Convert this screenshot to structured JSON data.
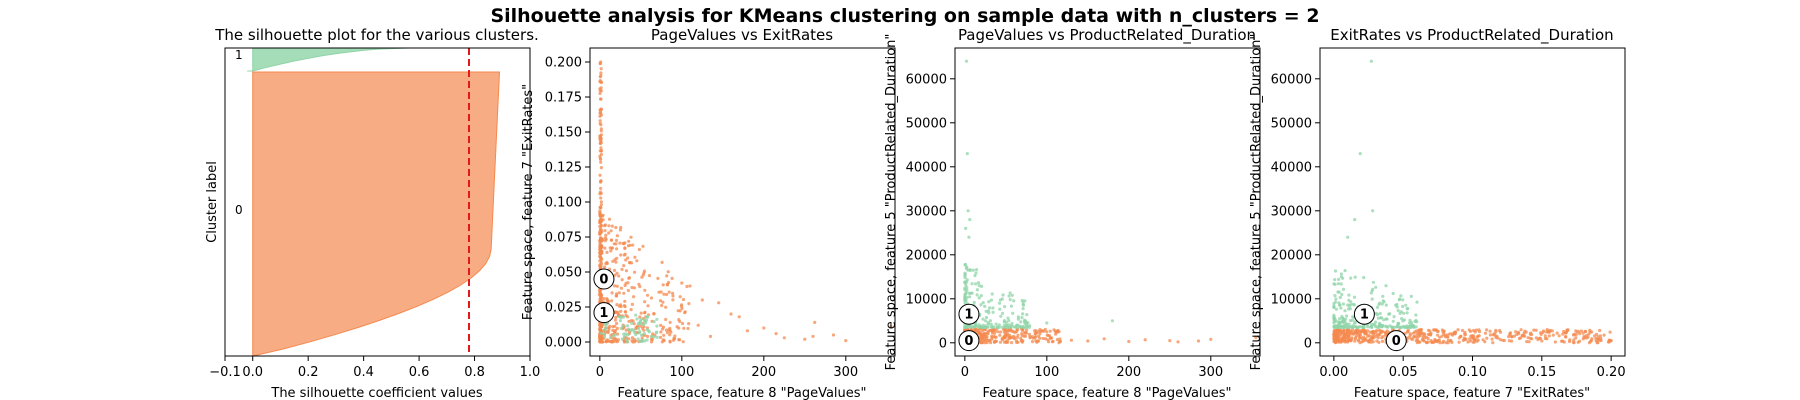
{
  "figure": {
    "suptitle": "Silhouette analysis for KMeans clustering on sample data with n_clusters = 2"
  },
  "colors": {
    "cluster_0": "#f4894f",
    "cluster_1": "#8fd4a8",
    "threshold": "#e31a1c",
    "center_fill": "#ffffff",
    "axis": "#000000"
  },
  "chart_data": [
    {
      "type": "area",
      "title": "The silhouette plot for the various clusters.",
      "xlabel": "The silhouette coefficient values",
      "ylabel": "Cluster label",
      "xlim": [
        -0.1,
        1.0
      ],
      "xticks": [
        -0.1,
        0.0,
        0.2,
        0.4,
        0.6,
        0.8,
        1.0
      ],
      "xtick_labels": [
        "−0.1",
        "0.0",
        "0.2",
        "0.4",
        "0.6",
        "0.8",
        "1.0"
      ],
      "average_silhouette": 0.78,
      "clusters": [
        {
          "label": "0",
          "max_coefficient": 0.89,
          "min_coefficient": 0.0
        },
        {
          "label": "1",
          "max_coefficient": 0.56,
          "min_coefficient": 0.0
        }
      ],
      "grid": false
    },
    {
      "type": "scatter",
      "title": "PageValues vs ExitRates",
      "xlabel": "Feature space, feature 8 \"PageValues\"",
      "ylabel": "Feature space, feature 7 \"ExitRates\"",
      "xlim": [
        -12,
        360
      ],
      "ylim": [
        -0.01,
        0.21
      ],
      "xticks": [
        0,
        100,
        200,
        300
      ],
      "yticks": [
        0.0,
        0.025,
        0.05,
        0.075,
        0.1,
        0.125,
        0.15,
        0.175,
        0.2
      ],
      "ytick_labels": [
        "0.000",
        "0.025",
        "0.050",
        "0.075",
        "0.100",
        "0.125",
        "0.150",
        "0.175",
        "0.200"
      ],
      "centers": [
        {
          "label": "0",
          "x": 5,
          "y": 0.045
        },
        {
          "label": "1",
          "x": 5,
          "y": 0.021
        }
      ],
      "grid": false
    },
    {
      "type": "scatter",
      "title": "PageValues vs ProductRelated_Duration",
      "xlabel": "Feature space, feature 8 \"PageValues\"",
      "ylabel": "Feature space, feature 5 \"ProductRelated_Duration\"",
      "xlim": [
        -12,
        360
      ],
      "ylim": [
        -3000,
        67000
      ],
      "xticks": [
        0,
        100,
        200,
        300
      ],
      "yticks": [
        0,
        10000,
        20000,
        30000,
        40000,
        50000,
        60000
      ],
      "centers": [
        {
          "label": "1",
          "x": 5,
          "y": 6500
        },
        {
          "label": "0",
          "x": 5,
          "y": 500
        }
      ],
      "grid": false
    },
    {
      "type": "scatter",
      "title": "ExitRates vs ProductRelated_Duration",
      "xlabel": "Feature space, feature 7 \"ExitRates\"",
      "ylabel": "Feature space, feature 5 \"ProductRelated_Duration\"",
      "xlim": [
        -0.01,
        0.21
      ],
      "ylim": [
        -3000,
        67000
      ],
      "xticks": [
        0.0,
        0.05,
        0.1,
        0.15,
        0.2
      ],
      "xtick_labels": [
        "0.00",
        "0.05",
        "0.10",
        "0.15",
        "0.20"
      ],
      "yticks": [
        0,
        10000,
        20000,
        30000,
        40000,
        50000,
        60000
      ],
      "centers": [
        {
          "label": "1",
          "x": 0.022,
          "y": 6500
        },
        {
          "label": "0",
          "x": 0.045,
          "y": 500
        }
      ],
      "grid": false
    }
  ]
}
